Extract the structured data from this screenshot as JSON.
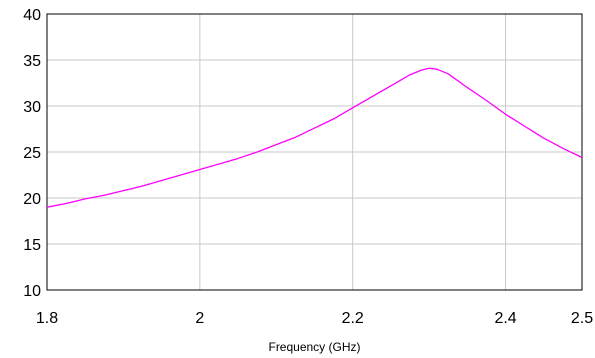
{
  "chart_data": {
    "type": "line",
    "title": "",
    "xlabel": "Frequency (GHz)",
    "ylabel": "",
    "xlim": [
      1.8,
      2.5
    ],
    "ylim": [
      10,
      40
    ],
    "xticks": [
      1.8,
      2.0,
      2.2,
      2.4,
      2.5
    ],
    "xtick_labels": [
      "1.8",
      "2",
      "2.2",
      "2.4",
      "2.5"
    ],
    "yticks": [
      10,
      15,
      20,
      25,
      30,
      35,
      40
    ],
    "ytick_labels": [
      "10",
      "15",
      "20",
      "25",
      "30",
      "35",
      "40"
    ],
    "grid": true,
    "legend": "none",
    "series": [
      {
        "color": "#ff00ff",
        "x": [
          1.8,
          1.825,
          1.85,
          1.875,
          1.9,
          1.925,
          1.95,
          1.975,
          2.0,
          2.025,
          2.05,
          2.075,
          2.1,
          2.125,
          2.15,
          2.175,
          2.2,
          2.225,
          2.25,
          2.275,
          2.29,
          2.3,
          2.31,
          2.325,
          2.35,
          2.375,
          2.4,
          2.425,
          2.45,
          2.475,
          2.5
        ],
        "y": [
          19.0,
          19.4,
          19.9,
          20.3,
          20.8,
          21.3,
          21.9,
          22.5,
          23.1,
          23.7,
          24.3,
          25.0,
          25.8,
          26.6,
          27.6,
          28.6,
          29.8,
          31.0,
          32.2,
          33.4,
          33.9,
          34.1,
          34.0,
          33.5,
          32.0,
          30.6,
          29.1,
          27.8,
          26.5,
          25.4,
          24.4
        ]
      }
    ]
  }
}
